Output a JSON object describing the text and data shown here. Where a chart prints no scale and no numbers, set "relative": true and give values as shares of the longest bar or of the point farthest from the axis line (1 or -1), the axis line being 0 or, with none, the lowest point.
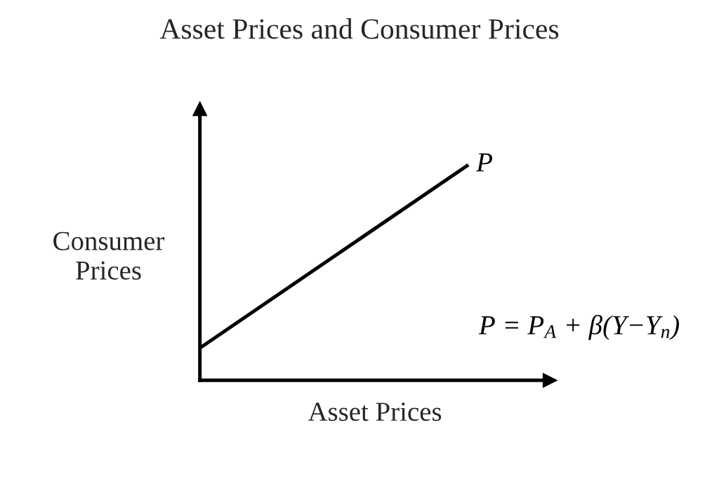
{
  "chart_data": {
    "type": "line",
    "title": "Asset Prices and Consumer Prices",
    "xlabel": "Asset Prices",
    "ylabel": "Consumer Prices",
    "categories": [
      null,
      null
    ],
    "relative": true,
    "series": [
      {
        "name": "P",
        "color": "#000000",
        "values": [
          0.15,
          1
        ]
      }
    ],
    "annotations": [
      "P = P$_{A}$ + β(Y−Y$_{n}$)"
    ]
  }
}
